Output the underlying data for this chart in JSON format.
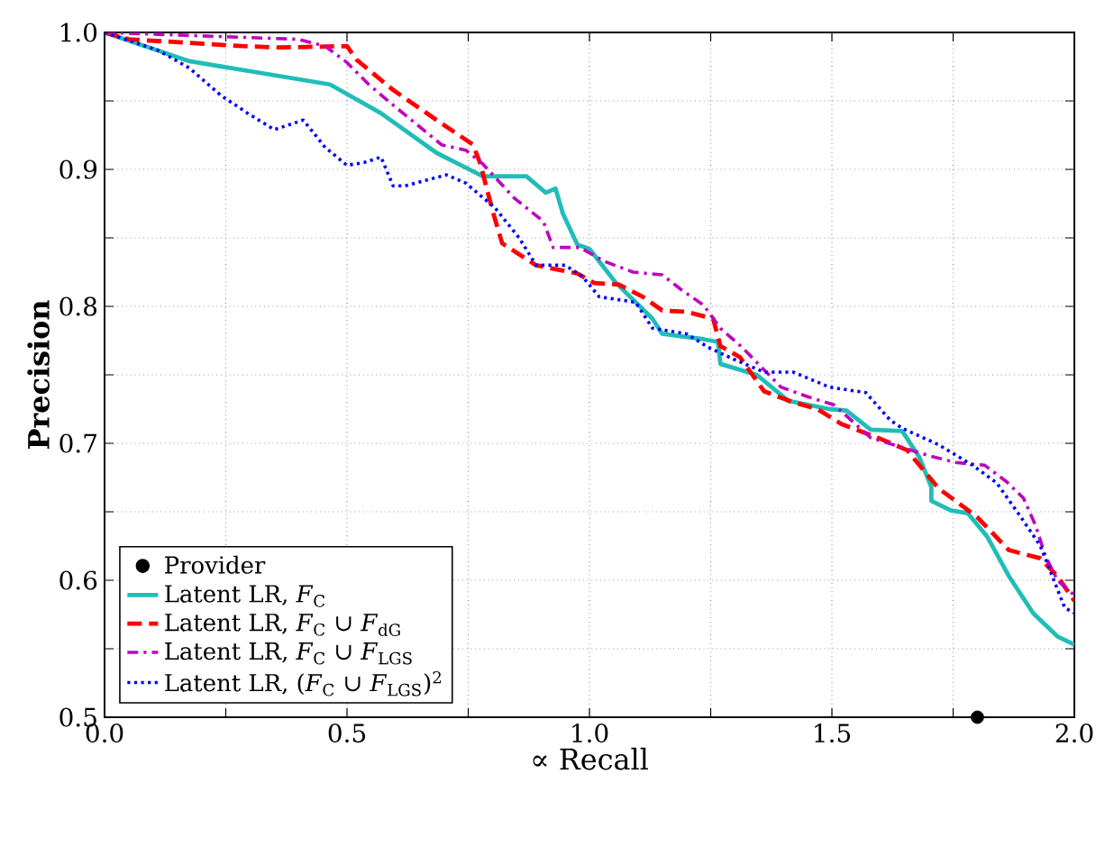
{
  "chart_data": {
    "type": "line",
    "xlabel": "∝ Recall",
    "ylabel": "Precision",
    "xlim": [
      0.0,
      2.0
    ],
    "ylim": [
      0.5,
      1.0
    ],
    "xticks": [
      {
        "value": 0,
        "label": "0.0"
      },
      {
        "value": 0.25,
        "label": null
      },
      0.5,
      {
        "value": 0.75,
        "label": null
      },
      {
        "value": 1,
        "label": "1.0"
      },
      {
        "value": 1.25,
        "label": null
      },
      1.5,
      {
        "value": 1.75,
        "label": null
      },
      {
        "value": 2,
        "label": "2.0"
      }
    ],
    "yticks": [
      0.5,
      {
        "value": 0.55,
        "label": null
      },
      0.6,
      {
        "value": 0.65,
        "label": null
      },
      0.7,
      {
        "value": 0.75,
        "label": null
      },
      0.8,
      {
        "value": 0.85,
        "label": null
      },
      0.9,
      {
        "value": 0.95,
        "label": null
      },
      {
        "value": 1,
        "label": "1.0"
      }
    ],
    "grid": true,
    "legend": "bottom left",
    "series": [
      {
        "name": "Provider",
        "type": "scatter",
        "marker": "circle",
        "color": "#000000",
        "x": [
          1.8
        ],
        "values": [
          0.5
        ]
      },
      {
        "name": "Latent LR, *F*$_{C}$",
        "line_style": "solid",
        "color": "#20bdb8",
        "x": [
          0,
          0.175,
          0.465,
          0.57,
          0.685,
          0.78,
          0.87,
          0.91,
          0.93,
          0.945,
          0.975,
          1.0,
          1.055,
          1.13,
          1.15,
          1.235,
          1.265,
          1.27,
          1.345,
          1.41,
          1.495,
          1.53,
          1.58,
          1.645,
          1.68,
          1.705,
          1.705,
          1.745,
          1.78,
          1.82,
          1.865,
          1.915,
          1.965,
          2.0
        ],
        "values": [
          1.0,
          0.979,
          0.962,
          0.941,
          0.912,
          0.895,
          0.895,
          0.883,
          0.886,
          0.868,
          0.845,
          0.842,
          0.817,
          0.791,
          0.78,
          0.776,
          0.774,
          0.758,
          0.75,
          0.731,
          0.725,
          0.724,
          0.71,
          0.709,
          0.69,
          0.668,
          0.658,
          0.651,
          0.649,
          0.632,
          0.603,
          0.576,
          0.559,
          0.553
        ]
      },
      {
        "name": "Latent LR, *F*$_{C}$ ∪ *F*$_{dG}$",
        "line_style": "dashed",
        "color": "#ff0000",
        "x": [
          0,
          0.05,
          0.285,
          0.36,
          0.5,
          0.52,
          0.595,
          0.685,
          0.76,
          0.775,
          0.8,
          0.82,
          0.89,
          0.975,
          1.01,
          1.06,
          1.11,
          1.15,
          1.2,
          1.255,
          1.27,
          1.31,
          1.36,
          1.42,
          1.47,
          1.52,
          1.595,
          1.655,
          1.72,
          1.755,
          1.8,
          1.865,
          1.93,
          1.965,
          2.0
        ],
        "values": [
          1.0,
          0.995,
          0.99,
          0.989,
          0.99,
          0.98,
          0.958,
          0.936,
          0.918,
          0.904,
          0.87,
          0.846,
          0.83,
          0.824,
          0.817,
          0.816,
          0.807,
          0.797,
          0.796,
          0.791,
          0.771,
          0.763,
          0.738,
          0.73,
          0.725,
          0.714,
          0.704,
          0.695,
          0.667,
          0.658,
          0.646,
          0.622,
          0.616,
          0.603,
          0.585
        ]
      },
      {
        "name": "Latent LR, *F*$_{C}$ ∪ *F*$_{LGS}$",
        "line_style": "dashdot",
        "color": "#bf00bf",
        "x": [
          0,
          0.4,
          0.455,
          0.5,
          0.545,
          0.595,
          0.695,
          0.745,
          0.78,
          0.845,
          0.905,
          0.925,
          0.98,
          1.03,
          1.09,
          1.15,
          1.19,
          1.235,
          1.27,
          1.315,
          1.395,
          1.45,
          1.505,
          1.58,
          1.7,
          1.755,
          1.815,
          1.86,
          1.895,
          1.92,
          1.94,
          1.965,
          2.0
        ],
        "values": [
          1.0,
          0.995,
          0.99,
          0.978,
          0.962,
          0.947,
          0.918,
          0.914,
          0.904,
          0.879,
          0.862,
          0.843,
          0.843,
          0.833,
          0.825,
          0.823,
          0.812,
          0.801,
          0.784,
          0.77,
          0.741,
          0.734,
          0.728,
          0.704,
          0.691,
          0.686,
          0.684,
          0.672,
          0.66,
          0.64,
          0.618,
          0.6,
          0.589
        ]
      },
      {
        "name": "Latent LR, (*F*$_{C}$ ∪ *F*$_{LGS}$)$^{2}$",
        "line_style": "dotted",
        "color": "#0000ff",
        "x": [
          0,
          0.11,
          0.175,
          0.24,
          0.295,
          0.35,
          0.41,
          0.455,
          0.5,
          0.535,
          0.57,
          0.595,
          0.62,
          0.705,
          0.745,
          0.805,
          0.855,
          0.89,
          0.95,
          0.985,
          1.02,
          1.095,
          1.13,
          1.2,
          1.245,
          1.3,
          1.36,
          1.42,
          1.495,
          1.57,
          1.62,
          1.645,
          1.72,
          1.79,
          1.84,
          1.89,
          1.93,
          1.95,
          1.98,
          2.0
        ],
        "values": [
          1.0,
          0.987,
          0.974,
          0.954,
          0.941,
          0.929,
          0.936,
          0.916,
          0.903,
          0.905,
          0.909,
          0.888,
          0.888,
          0.896,
          0.89,
          0.872,
          0.85,
          0.83,
          0.83,
          0.822,
          0.807,
          0.803,
          0.784,
          0.78,
          0.77,
          0.761,
          0.752,
          0.752,
          0.741,
          0.737,
          0.717,
          0.711,
          0.699,
          0.684,
          0.671,
          0.646,
          0.625,
          0.607,
          0.58,
          0.576
        ]
      }
    ]
  }
}
